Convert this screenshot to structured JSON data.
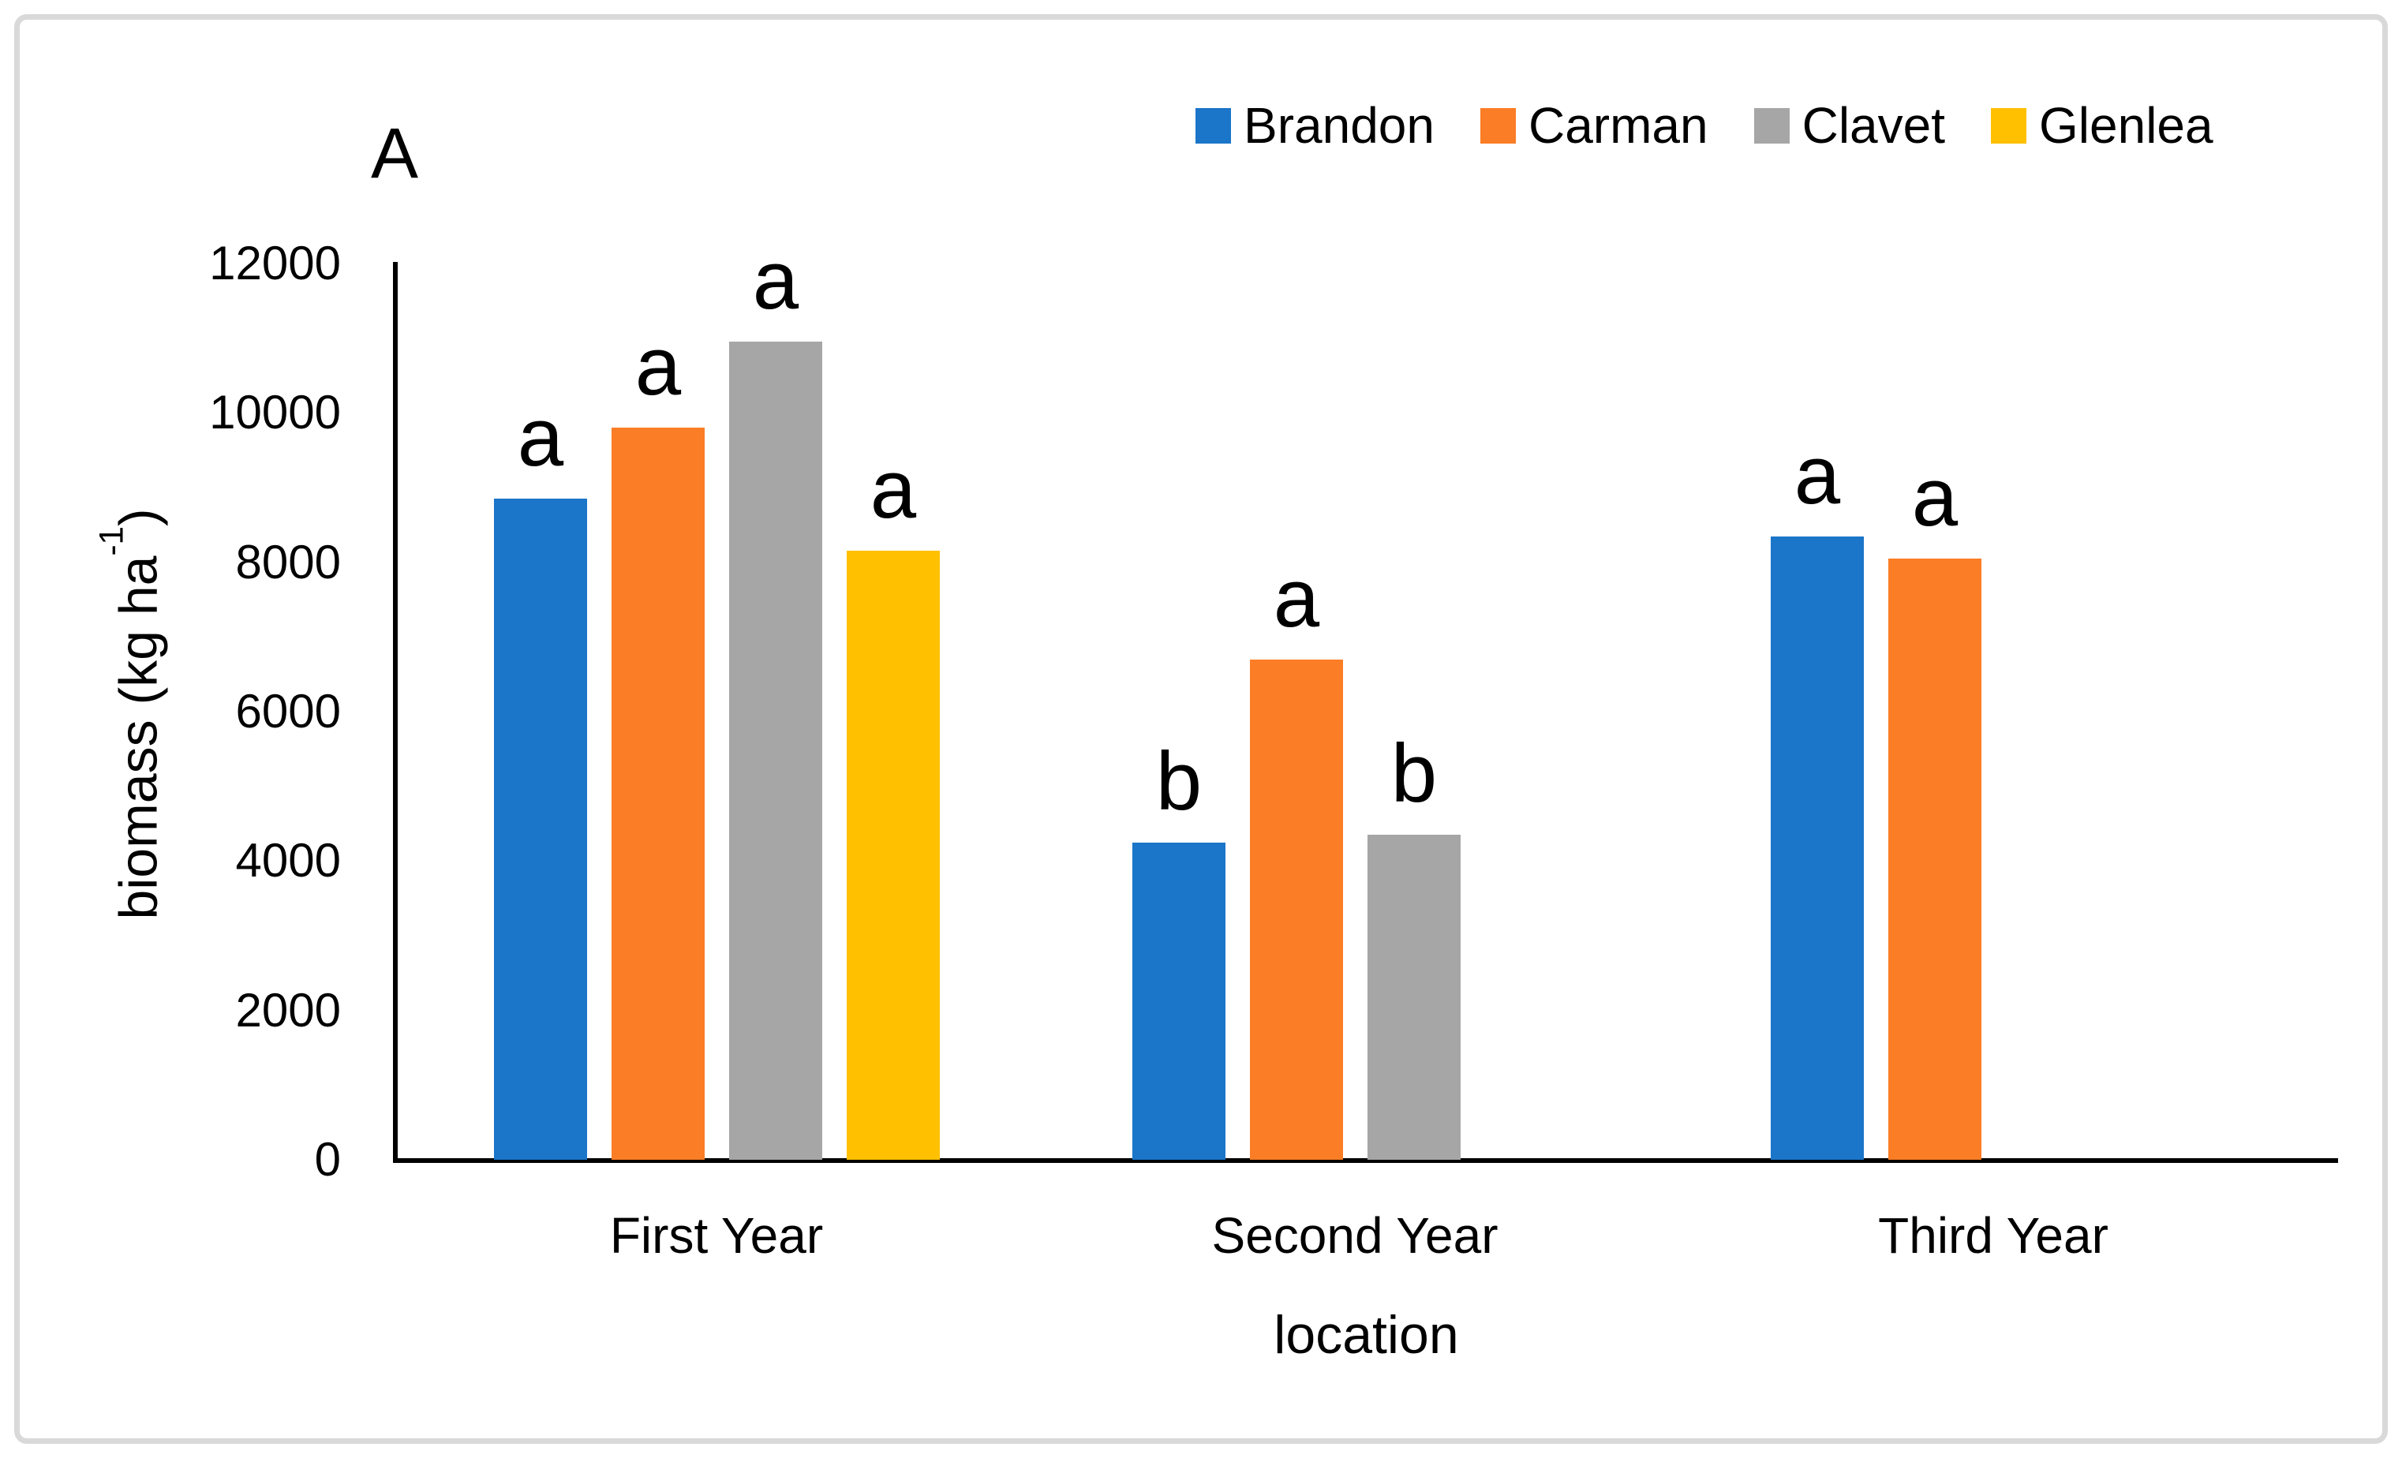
{
  "panel_label": "A",
  "y_axis": {
    "title_prefix": "biomass (kg ha",
    "title_sup": "-1",
    "title_suffix": ")"
  },
  "chart_data": {
    "type": "bar",
    "title": "A",
    "categories": [
      "First Year",
      "Second Year",
      "Third Year"
    ],
    "series": [
      {
        "name": "Brandon",
        "color": "#1B75C9",
        "values": [
          8850,
          4250,
          8350
        ],
        "letters": [
          "a",
          "b",
          "a"
        ]
      },
      {
        "name": "Carman",
        "color": "#FB7D25",
        "values": [
          9800,
          6700,
          8050
        ],
        "letters": [
          "a",
          "a",
          "a"
        ]
      },
      {
        "name": "Clavet",
        "color": "#A6A6A6",
        "values": [
          10950,
          4350,
          null
        ],
        "letters": [
          "a",
          "b",
          null
        ]
      },
      {
        "name": "Glenlea",
        "color": "#FFC000",
        "values": [
          8150,
          null,
          null
        ],
        "letters": [
          "a",
          null,
          null
        ]
      }
    ],
    "xlabel": "location",
    "ylabel": "biomass (kg ha-1)",
    "ylim": [
      0,
      12000
    ],
    "yticks": [
      0,
      2000,
      4000,
      6000,
      8000,
      10000,
      12000
    ],
    "legend_position": "top-right",
    "grid": false,
    "axis_color": "#000000",
    "frame_color": "#D9D9D9"
  }
}
